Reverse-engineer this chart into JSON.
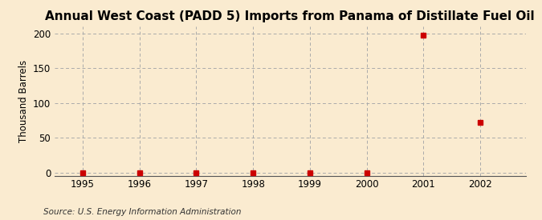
{
  "title": "Annual West Coast (PADD 5) Imports from Panama of Distillate Fuel Oil",
  "ylabel": "Thousand Barrels",
  "source": "Source: U.S. Energy Information Administration",
  "xlim": [
    1994.5,
    2002.8
  ],
  "ylim": [
    -5,
    210
  ],
  "yticks": [
    0,
    50,
    100,
    150,
    200
  ],
  "xticks": [
    1995,
    1996,
    1997,
    1998,
    1999,
    2000,
    2001,
    2002
  ],
  "x_data": [
    1995,
    1996,
    1997,
    1998,
    1999,
    2000,
    2001,
    2002
  ],
  "y_data": [
    0,
    0,
    0,
    0,
    0,
    0,
    197,
    72
  ],
  "marker_color": "#cc0000",
  "marker_size": 4,
  "background_color": "#faebd0",
  "grid_color": "#aaaaaa",
  "title_fontsize": 11,
  "axis_label_fontsize": 8.5,
  "tick_fontsize": 8.5,
  "source_fontsize": 7.5
}
